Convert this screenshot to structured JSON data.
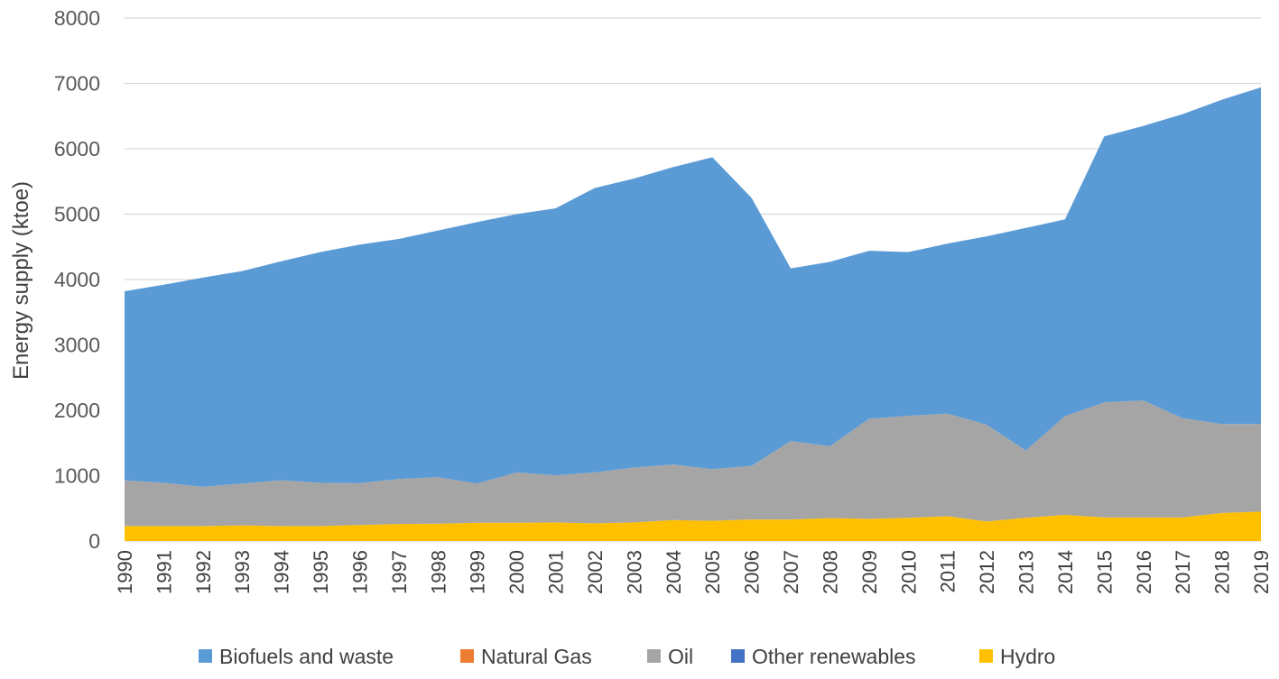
{
  "chart_data": {
    "type": "area",
    "stacked": true,
    "title": "",
    "xlabel": "",
    "ylabel": "Energy supply (ktoe)",
    "ylim": [
      0,
      8000
    ],
    "yticks": [
      0,
      1000,
      2000,
      3000,
      4000,
      5000,
      6000,
      7000,
      8000
    ],
    "grid": true,
    "legend_position": "bottom",
    "categories": [
      "1990",
      "1991",
      "1992",
      "1993",
      "1994",
      "1995",
      "1996",
      "1997",
      "1998",
      "1999",
      "2000",
      "2001",
      "2002",
      "2003",
      "2004",
      "2005",
      "2006",
      "2007",
      "2008",
      "2009",
      "2010",
      "2011",
      "2012",
      "2013",
      "2014",
      "2015",
      "2016",
      "2017",
      "2018",
      "2019"
    ],
    "series": [
      {
        "name": "Hydro",
        "color": "#ffc000",
        "values": [
          230,
          230,
          230,
          240,
          230,
          230,
          245,
          260,
          265,
          280,
          280,
          285,
          270,
          285,
          320,
          310,
          330,
          330,
          350,
          340,
          355,
          380,
          300,
          355,
          400,
          360,
          360,
          360,
          430,
          450
        ]
      },
      {
        "name": "Other renewables",
        "color": "#4472c4",
        "values": [
          0,
          0,
          0,
          0,
          0,
          0,
          0,
          0,
          0,
          0,
          0,
          0,
          0,
          0,
          0,
          0,
          0,
          0,
          0,
          0,
          0,
          0,
          0,
          0,
          0,
          0,
          0,
          0,
          0,
          0
        ]
      },
      {
        "name": "Oil",
        "color": "#a5a5a5",
        "values": [
          700,
          660,
          600,
          640,
          700,
          660,
          640,
          690,
          710,
          600,
          770,
          720,
          780,
          840,
          850,
          790,
          820,
          1200,
          1100,
          1530,
          1560,
          1570,
          1480,
          1030,
          1510,
          1760,
          1790,
          1520,
          1360,
          1340
        ]
      },
      {
        "name": "Natural Gas",
        "color": "#ed7d31",
        "values": [
          0,
          0,
          0,
          0,
          0,
          0,
          0,
          0,
          0,
          0,
          0,
          0,
          0,
          0,
          0,
          0,
          0,
          0,
          0,
          0,
          0,
          0,
          0,
          0,
          0,
          0,
          0,
          0,
          0,
          0
        ]
      },
      {
        "name": "Biofuels and waste",
        "color": "#5b9bd5",
        "values": [
          2890,
          3030,
          3200,
          3250,
          3350,
          3530,
          3650,
          3670,
          3775,
          4000,
          3950,
          4085,
          4350,
          4420,
          4550,
          4770,
          4100,
          2640,
          2820,
          2570,
          2505,
          2600,
          2880,
          3405,
          3010,
          4070,
          4200,
          4650,
          4960,
          5150
        ]
      }
    ],
    "legend": [
      "Biofuels and waste",
      "Natural Gas",
      "Oil",
      "Other renewables",
      "Hydro"
    ]
  }
}
